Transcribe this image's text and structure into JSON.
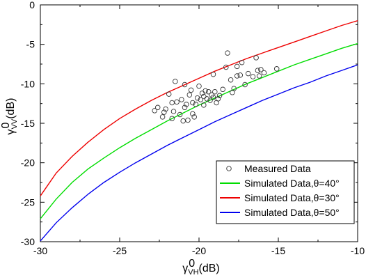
{
  "chart_data": {
    "type": "scatter",
    "xlabel": {
      "base": "γ",
      "sup": "0",
      "sub": "VH",
      "unit": "(dB)"
    },
    "ylabel": {
      "base": "γ",
      "sup": "0",
      "sub": "VV",
      "unit": "(dB)"
    },
    "xlim": [
      -30,
      -10
    ],
    "ylim": [
      -30,
      0
    ],
    "xticks": [
      -30,
      -25,
      -20,
      -15,
      -10
    ],
    "yticks": [
      -30,
      -25,
      -20,
      -15,
      -10,
      -5,
      0
    ],
    "xtick_labels": [
      "-30",
      "-25",
      "-20",
      "-15",
      "-10"
    ],
    "ytick_labels": [
      "-30",
      "-25",
      "-20",
      "-15",
      "-10",
      "-5",
      "0"
    ],
    "grid": false,
    "legend_position": "bottom-right",
    "series": [
      {
        "name": "Measured Data",
        "kind": "scatter",
        "color": "#333333",
        "marker": "open-circle",
        "points": [
          [
            -22.8,
            -13.4
          ],
          [
            -22.6,
            -13.0
          ],
          [
            -22.3,
            -14.2
          ],
          [
            -22.2,
            -13.6
          ],
          [
            -22.1,
            -13.2
          ],
          [
            -21.9,
            -11.3
          ],
          [
            -21.7,
            -14.4
          ],
          [
            -21.6,
            -13.5
          ],
          [
            -21.4,
            -12.3
          ],
          [
            -21.2,
            -13.9
          ],
          [
            -21.1,
            -12.0
          ],
          [
            -21.0,
            -14.7
          ],
          [
            -20.9,
            -13.0
          ],
          [
            -20.8,
            -12.6
          ],
          [
            -20.7,
            -14.6
          ],
          [
            -20.6,
            -11.4
          ],
          [
            -20.5,
            -10.8
          ],
          [
            -20.4,
            -12.4
          ],
          [
            -20.4,
            -13.8
          ],
          [
            -20.3,
            -14.2
          ],
          [
            -20.2,
            -12.6
          ],
          [
            -20.1,
            -11.8
          ],
          [
            -20.0,
            -10.3
          ],
          [
            -19.9,
            -12.0
          ],
          [
            -19.8,
            -11.2
          ],
          [
            -19.7,
            -11.6
          ],
          [
            -19.7,
            -12.7
          ],
          [
            -19.6,
            -10.9
          ],
          [
            -19.5,
            -11.9
          ],
          [
            -19.4,
            -11.0
          ],
          [
            -19.3,
            -12.1
          ],
          [
            -19.2,
            -11.4
          ],
          [
            -19.1,
            -11.7
          ],
          [
            -19.1,
            -8.8
          ],
          [
            -19.0,
            -11.0
          ],
          [
            -18.9,
            -12.4
          ],
          [
            -18.8,
            -11.9
          ],
          [
            -18.7,
            -11.5
          ],
          [
            -18.5,
            -10.7
          ],
          [
            -18.3,
            -7.9
          ],
          [
            -18.2,
            -6.1
          ],
          [
            -18.0,
            -9.5
          ],
          [
            -17.9,
            -11.1
          ],
          [
            -17.8,
            -10.6
          ],
          [
            -17.6,
            -7.8
          ],
          [
            -17.6,
            -9.0
          ],
          [
            -17.4,
            -8.9
          ],
          [
            -17.3,
            -7.3
          ],
          [
            -17.1,
            -10.1
          ],
          [
            -16.9,
            -8.7
          ],
          [
            -16.6,
            -9.1
          ],
          [
            -16.4,
            -6.7
          ],
          [
            -16.3,
            -8.3
          ],
          [
            -16.2,
            -9.0
          ],
          [
            -16.1,
            -8.2
          ],
          [
            -15.9,
            -8.6
          ],
          [
            -15.1,
            -8.1
          ],
          [
            -21.5,
            -9.7
          ],
          [
            -21.7,
            -12.4
          ],
          [
            -20.9,
            -10.1
          ]
        ]
      },
      {
        "name": "Simulated Data,θ=40°",
        "kind": "line",
        "color": "#00dd00",
        "x": [
          -30,
          -29,
          -28,
          -27,
          -26,
          -25,
          -24,
          -23,
          -22,
          -21,
          -20,
          -19,
          -18,
          -17,
          -16,
          -15,
          -14,
          -13,
          -12,
          -11,
          -10
        ],
        "y": [
          -27.1,
          -24.6,
          -22.5,
          -20.8,
          -19.4,
          -18.1,
          -16.9,
          -15.8,
          -14.7,
          -13.7,
          -12.7,
          -11.8,
          -10.9,
          -10.0,
          -9.2,
          -8.4,
          -7.6,
          -6.9,
          -6.2,
          -5.5,
          -4.9
        ]
      },
      {
        "name": "Simulated Data,θ=30°",
        "kind": "line",
        "color": "#ee0000",
        "x": [
          -30,
          -29,
          -28,
          -27,
          -26,
          -25,
          -24,
          -23,
          -22,
          -21,
          -20,
          -19,
          -18,
          -17,
          -16,
          -15,
          -14,
          -13,
          -12,
          -11,
          -10
        ],
        "y": [
          -24.2,
          -21.3,
          -19.2,
          -17.4,
          -15.8,
          -14.4,
          -13.2,
          -12.1,
          -11.1,
          -10.2,
          -9.3,
          -8.4,
          -7.6,
          -6.8,
          -6.1,
          -5.4,
          -4.7,
          -4.0,
          -3.3,
          -2.6,
          -2.0
        ]
      },
      {
        "name": "Simulated Data,θ=50°",
        "kind": "line",
        "color": "#0000ee",
        "x": [
          -30,
          -29,
          -28,
          -27,
          -26,
          -25,
          -24,
          -23,
          -22,
          -21,
          -20,
          -19,
          -18,
          -17,
          -16,
          -15,
          -14,
          -13,
          -12,
          -11,
          -10
        ],
        "y": [
          -29.9,
          -27.6,
          -25.7,
          -24.0,
          -22.5,
          -21.2,
          -20.0,
          -18.9,
          -17.8,
          -16.8,
          -15.8,
          -14.8,
          -13.9,
          -13.0,
          -12.1,
          -11.3,
          -10.5,
          -9.8,
          -9.0,
          -8.3,
          -7.6
        ]
      }
    ]
  }
}
